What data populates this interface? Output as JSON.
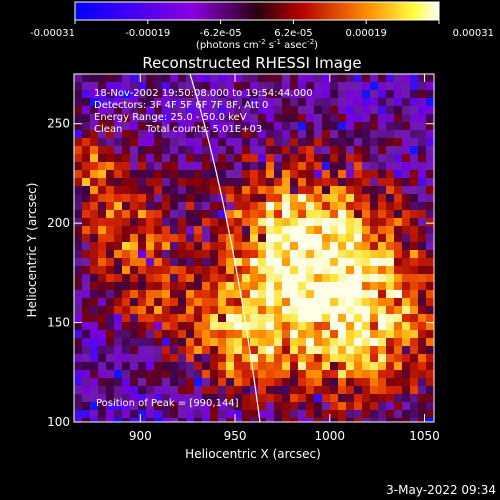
{
  "colorbar": {
    "ticks": [
      "-0.00031",
      "-0.00019",
      "-6.2e-05",
      "6.2e-05",
      "0.00019",
      "0.00031"
    ],
    "unit_parts": [
      "(photons cm",
      "-2",
      " s",
      "-1",
      " asec",
      "-2",
      ")"
    ]
  },
  "title": "Reconstructed RHESSI Image",
  "info": {
    "line1": "18-Nov-2002 19:50:08.000 to 19:54:44.000",
    "line2": "Detectors: 3F 4F 5F 6F 7F 8F, Att 0",
    "line3": "Energy Range: 25.0 - 50.0 keV",
    "line4_a": "Clean",
    "line4_b": "Total counts: 5.01E+03"
  },
  "peak_label": "Position of Peak = [990,144]",
  "xlabel": "Heliocentric X (arcsec)",
  "ylabel": "Heliocentric Y (arcsec)",
  "footer_timestamp": "3-May-2022 09:34",
  "axes": {
    "x": {
      "min": 865,
      "max": 1055,
      "ticks": [
        900,
        950,
        1000,
        1050
      ]
    },
    "y": {
      "min": 100,
      "max": 275,
      "ticks": [
        100,
        150,
        200,
        250
      ]
    }
  },
  "colors": {
    "background": "#000000",
    "text": "#ffffff",
    "colormap": [
      "#0000ff",
      "#7b00d8",
      "#3a0050",
      "#b00000",
      "#ff8000",
      "#ffff60",
      "#ffffff"
    ]
  }
}
